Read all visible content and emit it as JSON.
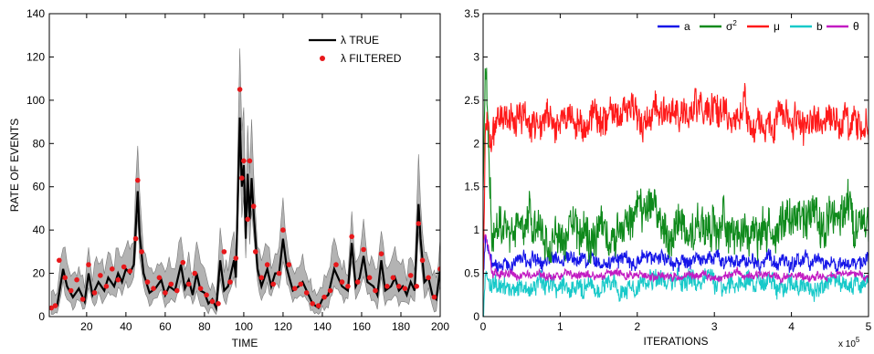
{
  "chart_data": [
    {
      "type": "line",
      "xlabel": "TIME",
      "ylabel": "RATE OF EVENTS",
      "xlim": [
        1,
        200
      ],
      "ylim": [
        0,
        140
      ],
      "xticks": [
        20,
        40,
        60,
        80,
        100,
        120,
        140,
        160,
        180,
        200
      ],
      "yticks": [
        0,
        20,
        40,
        60,
        80,
        100,
        120,
        140
      ],
      "grid": false,
      "legend_position": "top-right",
      "series": [
        {
          "name": "λ TRUE",
          "style": "line",
          "color": "#000000",
          "band_color": "#b3b3b3",
          "points": [
            [
              2,
              4
            ],
            [
              5,
              5
            ],
            [
              8,
              22
            ],
            [
              10,
              14
            ],
            [
              13,
              9
            ],
            [
              16,
              13
            ],
            [
              19,
              7
            ],
            [
              21,
              20
            ],
            [
              23,
              10
            ],
            [
              26,
              16
            ],
            [
              29,
              12
            ],
            [
              31,
              18
            ],
            [
              34,
              14
            ],
            [
              36,
              20
            ],
            [
              38,
              16
            ],
            [
              40,
              22
            ],
            [
              42,
              20
            ],
            [
              44,
              24
            ],
            [
              46,
              58
            ],
            [
              47,
              38
            ],
            [
              49,
              20
            ],
            [
              52,
              11
            ],
            [
              55,
              13
            ],
            [
              58,
              17
            ],
            [
              60,
              10
            ],
            [
              62,
              14
            ],
            [
              65,
              12
            ],
            [
              68,
              24
            ],
            [
              70,
              13
            ],
            [
              72,
              17
            ],
            [
              74,
              10
            ],
            [
              76,
              20
            ],
            [
              78,
              12
            ],
            [
              80,
              11
            ],
            [
              82,
              6
            ],
            [
              84,
              8
            ],
            [
              86,
              4
            ],
            [
              88,
              26
            ],
            [
              90,
              12
            ],
            [
              92,
              14
            ],
            [
              95,
              26
            ],
            [
              96,
              18
            ],
            [
              98,
              92
            ],
            [
              99,
              60
            ],
            [
              100,
              70
            ],
            [
              101,
              36
            ],
            [
              102,
              66
            ],
            [
              103,
              45
            ],
            [
              104,
              64
            ],
            [
              105,
              48
            ],
            [
              107,
              22
            ],
            [
              109,
              14
            ],
            [
              112,
              22
            ],
            [
              114,
              14
            ],
            [
              116,
              20
            ],
            [
              118,
              20
            ],
            [
              120,
              36
            ],
            [
              122,
              22
            ],
            [
              125,
              12
            ],
            [
              128,
              14
            ],
            [
              130,
              16
            ],
            [
              133,
              10
            ],
            [
              135,
              6
            ],
            [
              138,
              4
            ],
            [
              140,
              8
            ],
            [
              143,
              10
            ],
            [
              146,
              22
            ],
            [
              148,
              18
            ],
            [
              150,
              14
            ],
            [
              153,
              12
            ],
            [
              155,
              34
            ],
            [
              157,
              14
            ],
            [
              159,
              18
            ],
            [
              161,
              28
            ],
            [
              163,
              16
            ],
            [
              166,
              14
            ],
            [
              168,
              10
            ],
            [
              170,
              26
            ],
            [
              172,
              12
            ],
            [
              175,
              14
            ],
            [
              177,
              18
            ],
            [
              179,
              12
            ],
            [
              181,
              14
            ],
            [
              183,
              10
            ],
            [
              185,
              16
            ],
            [
              187,
              12
            ],
            [
              189,
              52
            ],
            [
              190,
              36
            ],
            [
              192,
              16
            ],
            [
              194,
              18
            ],
            [
              196,
              10
            ],
            [
              198,
              8
            ],
            [
              200,
              22
            ]
          ]
        },
        {
          "name": "λ FILTERED",
          "style": "markers",
          "color": "#e8181b",
          "points": [
            [
              2,
              4
            ],
            [
              4,
              5
            ],
            [
              6,
              26
            ],
            [
              9,
              18
            ],
            [
              12,
              12
            ],
            [
              15,
              17
            ],
            [
              18,
              8
            ],
            [
              21,
              24
            ],
            [
              24,
              11
            ],
            [
              27,
              19
            ],
            [
              30,
              14
            ],
            [
              33,
              22
            ],
            [
              36,
              17
            ],
            [
              39,
              23
            ],
            [
              42,
              21
            ],
            [
              45,
              36
            ],
            [
              46,
              63
            ],
            [
              48,
              30
            ],
            [
              51,
              16
            ],
            [
              54,
              13
            ],
            [
              57,
              18
            ],
            [
              60,
              11
            ],
            [
              63,
              15
            ],
            [
              66,
              12
            ],
            [
              69,
              25
            ],
            [
              72,
              15
            ],
            [
              75,
              20
            ],
            [
              78,
              13
            ],
            [
              81,
              10
            ],
            [
              84,
              7
            ],
            [
              87,
              6
            ],
            [
              90,
              30
            ],
            [
              93,
              16
            ],
            [
              96,
              27
            ],
            [
              98,
              105
            ],
            [
              99,
              64
            ],
            [
              100,
              72
            ],
            [
              102,
              45
            ],
            [
              103,
              72
            ],
            [
              105,
              51
            ],
            [
              106,
              30
            ],
            [
              109,
              18
            ],
            [
              112,
              24
            ],
            [
              115,
              15
            ],
            [
              118,
              20
            ],
            [
              120,
              40
            ],
            [
              123,
              24
            ],
            [
              126,
              13
            ],
            [
              129,
              15
            ],
            [
              132,
              11
            ],
            [
              135,
              6
            ],
            [
              138,
              5
            ],
            [
              141,
              9
            ],
            [
              144,
              12
            ],
            [
              147,
              24
            ],
            [
              150,
              16
            ],
            [
              153,
              14
            ],
            [
              155,
              37
            ],
            [
              158,
              16
            ],
            [
              161,
              31
            ],
            [
              164,
              18
            ],
            [
              167,
              12
            ],
            [
              170,
              29
            ],
            [
              173,
              14
            ],
            [
              176,
              18
            ],
            [
              179,
              14
            ],
            [
              182,
              13
            ],
            [
              185,
              19
            ],
            [
              188,
              14
            ],
            [
              189,
              43
            ],
            [
              191,
              26
            ],
            [
              194,
              18
            ],
            [
              197,
              9
            ],
            [
              200,
              22
            ]
          ]
        }
      ]
    },
    {
      "type": "line",
      "xlabel": "ITERATIONS",
      "x_multiplier": "x 10",
      "x_multiplier_exp": "5",
      "ylabel": "",
      "xlim": [
        0,
        5
      ],
      "ylim": [
        0,
        3.5
      ],
      "xticks": [
        0,
        1,
        2,
        3,
        4,
        5
      ],
      "yticks": [
        0,
        0.5,
        1,
        1.5,
        2,
        2.5,
        3,
        3.5
      ],
      "grid": false,
      "legend_position": "top, horizontal",
      "series": [
        {
          "name": "a",
          "color": "#1515e8",
          "level": 0.65,
          "spread": 0.09,
          "start": 0.45,
          "peak": 0.95
        },
        {
          "name": "σ",
          "name_sup": "2",
          "color": "#0f8a1c",
          "level": 1.05,
          "spread": 0.26,
          "start": 1.6,
          "peak": 3.05
        },
        {
          "name": "μ",
          "color": "#ff1a1a",
          "level": 2.28,
          "spread": 0.2,
          "start": 0.3,
          "peak": 2.4
        },
        {
          "name": "b",
          "color": "#18c9c9",
          "level": 0.35,
          "spread": 0.12,
          "start": 0.02,
          "peak": 0.5
        },
        {
          "name": "θ",
          "color": "#c21bc2",
          "level": 0.48,
          "spread": 0.05,
          "start": 0.85,
          "peak": 0.95
        }
      ]
    }
  ]
}
